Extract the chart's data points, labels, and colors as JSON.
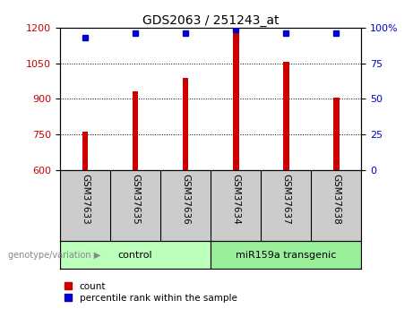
{
  "title": "GDS2063 / 251243_at",
  "samples": [
    "GSM37633",
    "GSM37635",
    "GSM37636",
    "GSM37634",
    "GSM37637",
    "GSM37638"
  ],
  "bar_values": [
    760,
    930,
    990,
    1185,
    1058,
    905
  ],
  "percentile_values": [
    93,
    96,
    96,
    99,
    96,
    96
  ],
  "bar_color": "#cc0000",
  "dot_color": "#0000cc",
  "ylim_left": [
    600,
    1200
  ],
  "ylim_right": [
    0,
    100
  ],
  "yticks_left": [
    600,
    750,
    900,
    1050,
    1200
  ],
  "yticks_right": [
    0,
    25,
    50,
    75,
    100
  ],
  "ytick_labels_right": [
    "0",
    "25",
    "50",
    "75",
    "100%"
  ],
  "groups": [
    {
      "label": "control",
      "indices": [
        0,
        1,
        2
      ],
      "color": "#bbffbb"
    },
    {
      "label": "miR159a transgenic",
      "indices": [
        3,
        4,
        5
      ],
      "color": "#99ee99"
    }
  ],
  "genotype_label": "genotype/variation",
  "legend_count_label": "count",
  "legend_pct_label": "percentile rank within the sample",
  "background_color": "#ffffff",
  "plot_bg_color": "#ffffff",
  "sample_bg_color": "#cccccc",
  "bar_width": 0.12
}
